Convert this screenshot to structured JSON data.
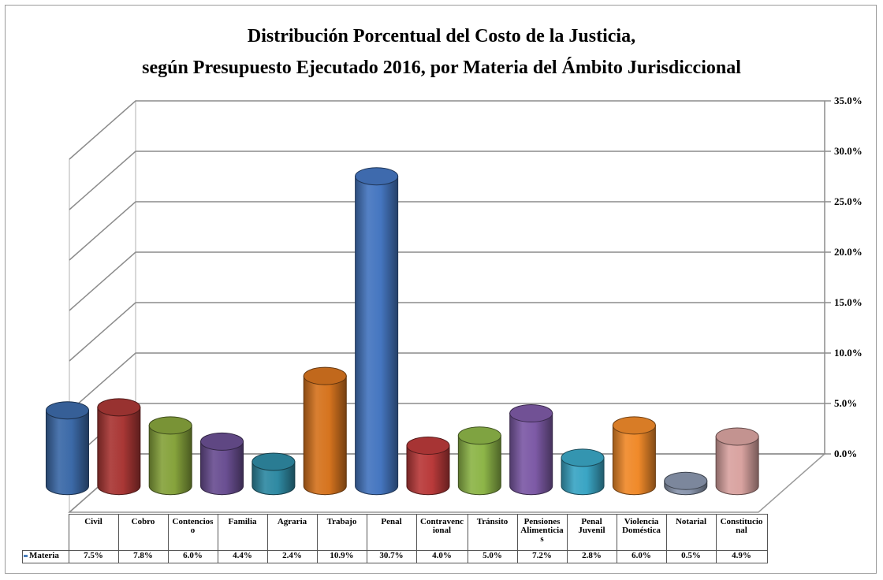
{
  "chart_data": {
    "type": "bar",
    "title": "Distribución Porcentual del Costo de la Justicia,",
    "subtitle": "según Presupuesto Ejecutado 2016, por Materia del Ámbito Jurisdiccional",
    "categories": [
      "Civil",
      "Cobro",
      "Contencioso",
      "Familia",
      "Agraria",
      "Trabajo",
      "Penal",
      "Contravencional",
      "Tránsito",
      "Pensiones Alimenticias",
      "Penal Juvenil",
      "Violencia Doméstica",
      "Notarial",
      "Constitucional"
    ],
    "category_labels_wrapped": [
      [
        "Civil"
      ],
      [
        "Cobro"
      ],
      [
        "Contencios",
        "o"
      ],
      [
        "Familia"
      ],
      [
        "Agraria"
      ],
      [
        "Trabajo"
      ],
      [
        "Penal"
      ],
      [
        "Contravenc",
        "ional"
      ],
      [
        "Tránsito"
      ],
      [
        "Pensiones",
        "Alimenticia",
        "s"
      ],
      [
        "Penal",
        "Juvenil"
      ],
      [
        "Violencia",
        "Doméstica"
      ],
      [
        "Notarial"
      ],
      [
        "Constitucio",
        "nal"
      ]
    ],
    "series": [
      {
        "name": "Materia",
        "values": [
          7.5,
          7.8,
          6.0,
          4.4,
          2.4,
          10.9,
          30.7,
          4.0,
          5.0,
          7.2,
          2.8,
          6.0,
          0.5,
          4.9
        ],
        "value_labels": [
          "7.5%",
          "7.8%",
          "6.0%",
          "4.4%",
          "2.4%",
          "10.9%",
          "30.7%",
          "4.0%",
          "5.0%",
          "7.2%",
          "2.8%",
          "6.0%",
          "0.5%",
          "4.9%"
        ]
      }
    ],
    "colors": [
      "#3c6aa8",
      "#a93735",
      "#86a33c",
      "#6a4f92",
      "#2f8aa3",
      "#d6741f",
      "#4576c0",
      "#b93a3a",
      "#8db548",
      "#7d5aa6",
      "#3aa5c4",
      "#f08a2a",
      "#8a96ad",
      "#d9a3a0"
    ],
    "y_ticks": [
      "0.0%",
      "5.0%",
      "10.0%",
      "15.0%",
      "20.0%",
      "25.0%",
      "30.0%",
      "35.0%"
    ],
    "ylim": [
      0,
      35
    ],
    "grid": true,
    "legend": "data table"
  }
}
